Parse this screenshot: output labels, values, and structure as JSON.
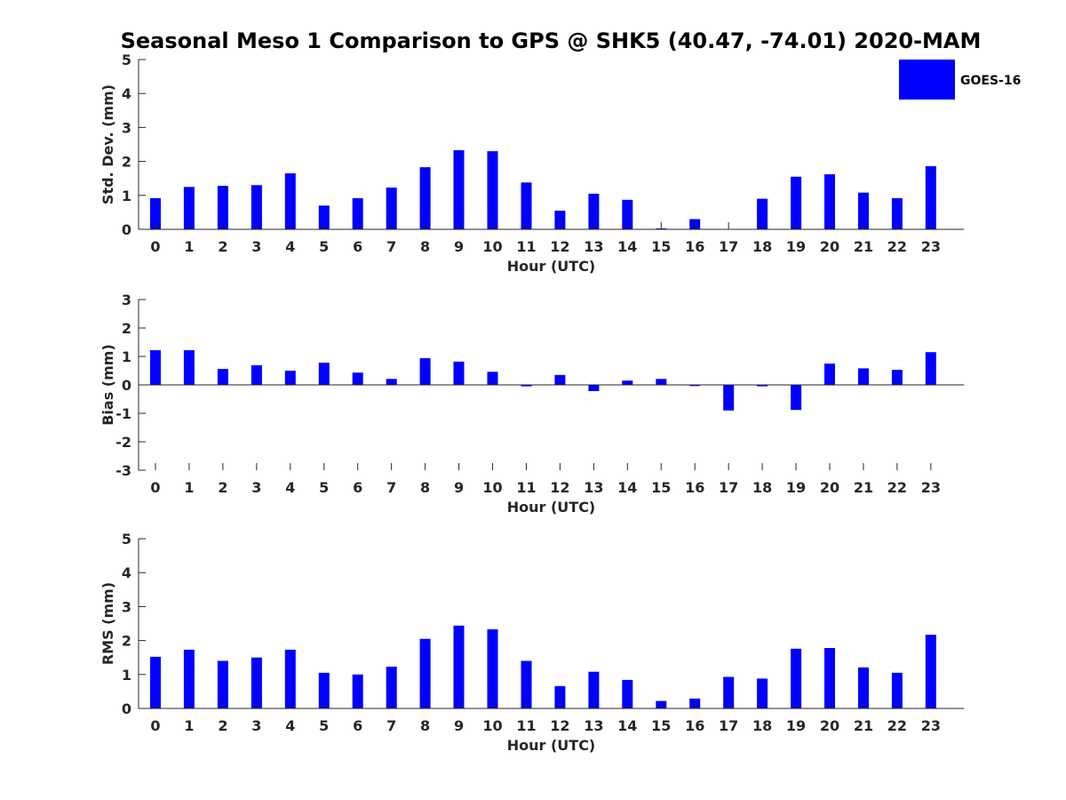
{
  "title": "Seasonal Meso 1 Comparison to GPS @ SHK5 (40.47, -74.01) 2020-MAM",
  "legend": {
    "label": "GOES-16",
    "color": "#0000ff"
  },
  "chart_data": [
    {
      "type": "bar",
      "id": "std",
      "categories": [
        "0",
        "1",
        "2",
        "3",
        "4",
        "5",
        "6",
        "7",
        "8",
        "9",
        "10",
        "11",
        "12",
        "13",
        "14",
        "15",
        "16",
        "17",
        "18",
        "19",
        "20",
        "21",
        "22",
        "23"
      ],
      "values": [
        0.92,
        1.25,
        1.28,
        1.3,
        1.65,
        0.7,
        0.92,
        1.23,
        1.83,
        2.33,
        2.3,
        1.38,
        0.55,
        1.05,
        0.87,
        0.03,
        0.3,
        0.0,
        0.9,
        1.55,
        1.62,
        1.08,
        0.92,
        1.86
      ],
      "xlabel": "Hour (UTC)",
      "ylabel": "Std. Dev. (mm)",
      "ylim": [
        0,
        5
      ],
      "yticks": [
        "0",
        "1",
        "2",
        "3",
        "4",
        "5"
      ],
      "color": "#0000ff"
    },
    {
      "type": "bar",
      "id": "bias",
      "categories": [
        "0",
        "1",
        "2",
        "3",
        "4",
        "5",
        "6",
        "7",
        "8",
        "9",
        "10",
        "11",
        "12",
        "13",
        "14",
        "15",
        "16",
        "17",
        "18",
        "19",
        "20",
        "21",
        "22",
        "23"
      ],
      "values": [
        1.22,
        1.22,
        0.56,
        0.69,
        0.5,
        0.78,
        0.43,
        0.21,
        0.94,
        0.82,
        0.46,
        -0.05,
        0.35,
        -0.22,
        0.15,
        0.21,
        -0.04,
        -0.9,
        -0.05,
        -0.88,
        0.75,
        0.58,
        0.53,
        1.15
      ],
      "xlabel": "Hour (UTC)",
      "ylabel": "Bias (mm)",
      "ylim": [
        -3,
        3
      ],
      "yticks": [
        "-3",
        "-2",
        "-1",
        "0",
        "1",
        "2",
        "3"
      ],
      "color": "#0000ff"
    },
    {
      "type": "bar",
      "id": "rms",
      "categories": [
        "0",
        "1",
        "2",
        "3",
        "4",
        "5",
        "6",
        "7",
        "8",
        "9",
        "10",
        "11",
        "12",
        "13",
        "14",
        "15",
        "16",
        "17",
        "18",
        "19",
        "20",
        "21",
        "22",
        "23"
      ],
      "values": [
        1.52,
        1.73,
        1.4,
        1.5,
        1.73,
        1.05,
        1.0,
        1.23,
        2.05,
        2.44,
        2.33,
        1.4,
        0.66,
        1.08,
        0.84,
        0.22,
        0.29,
        0.93,
        0.88,
        1.76,
        1.78,
        1.21,
        1.05,
        2.17
      ],
      "xlabel": "Hour (UTC)",
      "ylabel": "RMS (mm)",
      "ylim": [
        0,
        5
      ],
      "yticks": [
        "0",
        "1",
        "2",
        "3",
        "4",
        "5"
      ],
      "color": "#0000ff"
    }
  ]
}
